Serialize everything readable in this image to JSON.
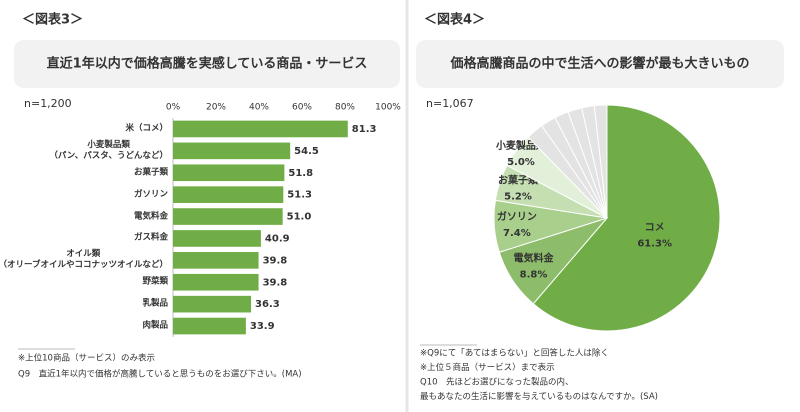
{
  "chart_data": [
    {
      "type": "hbar",
      "label": "＜図表3＞",
      "title": "直近1年以内で価格高騰を実感している商品・サービス",
      "sample": "n=1,200",
      "categories": [
        "米（コメ）",
        "小麦製品類\n（パン、パスタ、うどんなど）",
        "お菓子類",
        "ガソリン",
        "電気料金",
        "ガス料金",
        "オイル類\n（オリーブオイルやココナッツオイルなど）",
        "野菜類",
        "乳製品",
        "肉製品"
      ],
      "values": [
        81.3,
        54.5,
        51.8,
        51.3,
        51.0,
        40.9,
        39.8,
        39.8,
        36.3,
        33.9
      ],
      "value_labels": [
        "81.3",
        "54.5",
        "51.8",
        "51.3",
        "51.0",
        "40.9",
        "39.8",
        "39.8",
        "36.3",
        "33.9"
      ],
      "color": "#70ad47",
      "xlim": [
        0,
        100
      ],
      "xticks": [
        {
          "value": 0,
          "label": "0%"
        },
        {
          "value": 20,
          "label": "20%"
        },
        {
          "value": 40,
          "label": "40%"
        },
        {
          "value": 60,
          "label": "60%"
        },
        {
          "value": 80,
          "label": "80%"
        },
        {
          "value": 100,
          "label": "100%"
        }
      ],
      "notes": [
        "※上位10商品（サービス）のみ表示",
        "Q9　直近1年以内で価格が高騰していると思うものをお選び下さい。(MA)"
      ]
    },
    {
      "type": "pie",
      "label": "＜図表4＞",
      "title": "価格高騰商品の中で生活への影響が最も大きいもの",
      "sample": "n=1,067",
      "categories": [
        "コメ",
        "電気料金",
        "ガソリン",
        "お菓子類",
        "小麦製品類",
        null,
        null,
        null,
        null,
        null,
        null
      ],
      "values": [
        61.3,
        8.8,
        7.4,
        5.2,
        5.0,
        2.5,
        2.2,
        2.0,
        2.0,
        1.8,
        1.8
      ],
      "value_labels": [
        "61.3%",
        "8.8%",
        "7.4%",
        "5.2%",
        "5.0%",
        null,
        null,
        null,
        null,
        null,
        null
      ],
      "colors": [
        "#70ad47",
        "#8dbd6b",
        "#a9cf8d",
        "#c5dfb2",
        "#e2efd9",
        "#e3e3e3",
        "#e3e3e3",
        "#e3e3e3",
        "#e3e3e3",
        "#e3e3e3",
        "#e3e3e3"
      ],
      "notes": [
        "※Q9にて「あてはまらない」と回答した人は除く",
        "※上位５商品（サービス）まで表示",
        "Q10　先ほどお選びになった製品の内、",
        "最もあなたの生活に影響を与えているものはなんですか。(SA)"
      ]
    }
  ]
}
